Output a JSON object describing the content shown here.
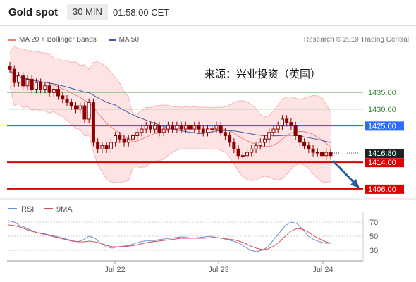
{
  "header": {
    "symbol": "Gold spot",
    "timeframe": "30 MIN",
    "time": "01:58:00 CET"
  },
  "legend": {
    "items": [
      {
        "label": "MA 20 + Bollinger Bands",
        "color": "#f08080"
      },
      {
        "label": "MA 50",
        "color": "#3a5fa0"
      }
    ],
    "credit": "Research © 2019 Trading Central"
  },
  "annotation": "来源：兴业投资（英国）",
  "levels": [
    {
      "value": 1435.0,
      "label": "1435.00",
      "style": "green-line"
    },
    {
      "value": 1430.0,
      "label": "1430.00",
      "style": "green-line"
    },
    {
      "value": 1425.0,
      "label": "1425.00",
      "style": "blue-line"
    },
    {
      "value": 1416.8,
      "label": "1416.80",
      "style": "current-price"
    },
    {
      "value": 1414.0,
      "label": "1414.00",
      "style": "red-line"
    },
    {
      "value": 1406.0,
      "label": "1406.00",
      "style": "red-line"
    }
  ],
  "rsi_legend": {
    "rsi": "RSI",
    "ma": "9MA"
  },
  "rsi_ticks": [
    "70",
    "50",
    "30"
  ],
  "date_labels": [
    "Jul 22",
    "Jul 23",
    "Jul 24"
  ],
  "colors": {
    "candle": "#8b0000",
    "ma20": "#f08080",
    "band_fill": "#fde3e3",
    "ma50": "#3a5fa0",
    "blue_level": "#2f6bff",
    "red_level": "#dd0000",
    "green_level": "#7cc47c",
    "arrow": "#2a5aa6",
    "rsi": "#6f8fd6",
    "rsi_ma": "#e05050"
  },
  "chart_data": {
    "type": "candlestick",
    "series_ohlc_close_approx": [
      1442,
      1438,
      1440,
      1437,
      1439,
      1436,
      1438,
      1436,
      1437,
      1435,
      1436,
      1434,
      1433,
      1432,
      1431,
      1430,
      1431,
      1427,
      1432,
      1420,
      1418,
      1419,
      1418,
      1420,
      1422,
      1421,
      1420,
      1421,
      1422,
      1423,
      1424,
      1425,
      1424,
      1425,
      1423,
      1424,
      1425,
      1424,
      1425,
      1424,
      1425,
      1424,
      1425,
      1424,
      1423,
      1424,
      1424,
      1425,
      1423,
      1422,
      1420,
      1418,
      1416,
      1416,
      1417,
      1418,
      1419,
      1420,
      1421,
      1423,
      1424,
      1425,
      1427,
      1426,
      1425,
      1422,
      1420,
      1419,
      1418,
      1417,
      1417,
      1416,
      1417,
      1416
    ],
    "ylim": [
      1403,
      1448
    ],
    "rsi_approx": [
      72,
      70,
      65,
      62,
      58,
      55,
      54,
      52,
      50,
      48,
      46,
      44,
      42,
      45,
      50,
      47,
      40,
      35,
      33,
      35,
      36,
      37,
      40,
      42,
      44,
      43,
      45,
      46,
      47,
      48,
      49,
      48,
      47,
      48,
      49,
      50,
      48,
      47,
      45,
      43,
      40,
      35,
      30,
      28,
      30,
      35,
      45,
      55,
      65,
      70,
      68,
      60,
      50,
      45,
      42,
      40,
      40
    ],
    "rsi_ma_approx": [
      66,
      65,
      63,
      60,
      57,
      55,
      53,
      51,
      49,
      47,
      45,
      43,
      42,
      42,
      43,
      42,
      40,
      37,
      35,
      35,
      35,
      36,
      37,
      39,
      41,
      42,
      43,
      44,
      45,
      46,
      47,
      47,
      47,
      47,
      47,
      48,
      48,
      47,
      46,
      45,
      43,
      40,
      36,
      33,
      31,
      32,
      36,
      42,
      50,
      57,
      61,
      60,
      56,
      50,
      46,
      42,
      40
    ]
  }
}
